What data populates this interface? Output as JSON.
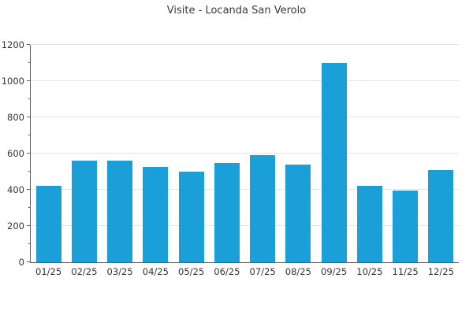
{
  "page": {
    "background": "#ffffff"
  },
  "colors": {
    "bar": "#1A9FD8",
    "grid": "#e5e5e5",
    "axis": "#5f5f5f",
    "tick_text": "#333333",
    "title_text": "#3a3a3a",
    "background": "#ffffff"
  },
  "chart_data": {
    "type": "bar",
    "title": "Visite - Locanda San Verolo",
    "categories": [
      "01/25",
      "02/25",
      "03/25",
      "04/25",
      "05/25",
      "06/25",
      "07/25",
      "08/25",
      "09/25",
      "10/25",
      "11/25",
      "12/25"
    ],
    "values": [
      420,
      560,
      560,
      525,
      500,
      550,
      590,
      540,
      1100,
      420,
      395,
      510
    ],
    "xlabel": "",
    "ylabel": "",
    "ylim": [
      0,
      1200
    ],
    "yticks": [
      0,
      200,
      400,
      600,
      800,
      1000,
      1200
    ],
    "minor_yticks": [
      100,
      300,
      500,
      700,
      900,
      1100
    ],
    "grid": "horizontal major gridlines only, light gray",
    "legend": "none",
    "single_series": true
  }
}
